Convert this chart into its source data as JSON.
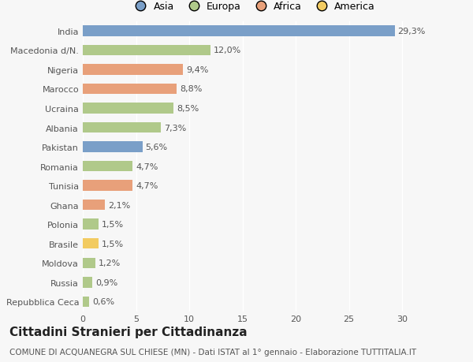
{
  "categories": [
    "Repubblica Ceca",
    "Russia",
    "Moldova",
    "Brasile",
    "Polonia",
    "Ghana",
    "Tunisia",
    "Romania",
    "Pakistan",
    "Albania",
    "Ucraina",
    "Marocco",
    "Nigeria",
    "Macedonia d/N.",
    "India"
  ],
  "values": [
    0.6,
    0.9,
    1.2,
    1.5,
    1.5,
    2.1,
    4.7,
    4.7,
    5.6,
    7.3,
    8.5,
    8.8,
    9.4,
    12.0,
    29.3
  ],
  "labels": [
    "0,6%",
    "0,9%",
    "1,2%",
    "1,5%",
    "1,5%",
    "2,1%",
    "4,7%",
    "4,7%",
    "5,6%",
    "7,3%",
    "8,5%",
    "8,8%",
    "9,4%",
    "12,0%",
    "29,3%"
  ],
  "colors": [
    "#b0c98a",
    "#b0c98a",
    "#b0c98a",
    "#f2cb61",
    "#b0c98a",
    "#e8a07a",
    "#e8a07a",
    "#b0c98a",
    "#7a9fc8",
    "#b0c98a",
    "#b0c98a",
    "#e8a07a",
    "#e8a07a",
    "#b0c98a",
    "#7a9fc8"
  ],
  "legend": [
    {
      "label": "Asia",
      "color": "#7a9fc8"
    },
    {
      "label": "Europa",
      "color": "#b0c98a"
    },
    {
      "label": "Africa",
      "color": "#e8a07a"
    },
    {
      "label": "America",
      "color": "#f2cb61"
    }
  ],
  "title": "Cittadini Stranieri per Cittadinanza",
  "subtitle": "COMUNE DI ACQUANEGRA SUL CHIESE (MN) - Dati ISTAT al 1° gennaio - Elaborazione TUTTITALIA.IT",
  "xlim": [
    0,
    32
  ],
  "xticks": [
    0,
    5,
    10,
    15,
    20,
    25,
    30
  ],
  "background_color": "#f7f7f7",
  "bar_height": 0.55,
  "title_fontsize": 11,
  "subtitle_fontsize": 7.5,
  "label_fontsize": 8,
  "tick_fontsize": 8,
  "legend_fontsize": 9
}
